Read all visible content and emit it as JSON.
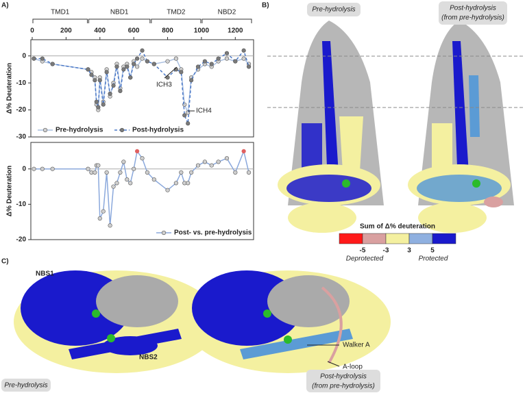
{
  "panels": {
    "a": "A)",
    "b": "B)",
    "c": "C)"
  },
  "chart_data": [
    {
      "type": "line",
      "ylabel": "Δ% Deuteration",
      "xlim": [
        0,
        1300
      ],
      "xticks": [
        0,
        200,
        400,
        600,
        800,
        1000,
        1200
      ],
      "ylim": [
        -30,
        6
      ],
      "yticks": [
        0,
        -10,
        -20,
        -30
      ],
      "domains": [
        {
          "name": "TMD1",
          "start": 0,
          "end": 330
        },
        {
          "name": "NBD1",
          "start": 330,
          "end": 700
        },
        {
          "name": "TMD2",
          "start": 700,
          "end": 1000
        },
        {
          "name": "NBD2",
          "start": 1000,
          "end": 1300
        }
      ],
      "annotations": [
        "ICH3",
        "ICH4"
      ],
      "legend": "bottom left",
      "series": [
        {
          "name": "Pre-hydrolysis",
          "color": "#a9bfe0",
          "marker_color": "#d0d0d0",
          "dashed": false,
          "x": [
            10,
            60,
            120,
            330,
            350,
            370,
            380,
            390,
            400,
            420,
            440,
            460,
            480,
            500,
            520,
            540,
            560,
            580,
            600,
            620,
            650,
            680,
            720,
            800,
            850,
            880,
            900,
            920,
            940,
            980,
            1020,
            1060,
            1100,
            1150,
            1200,
            1250,
            1280
          ],
          "values": [
            -1,
            -2,
            -3,
            -5,
            -6,
            -8,
            -18,
            -20,
            -8,
            -17,
            -5,
            -15,
            -10,
            -3,
            -12,
            -4,
            -3,
            -8,
            -2,
            -4,
            -1,
            -2,
            -3,
            -2,
            -1,
            -5,
            -18,
            -21,
            -8,
            -5,
            -3,
            -4,
            -2,
            -1,
            -2,
            -1,
            -3
          ]
        },
        {
          "name": "Post-hydrolysis",
          "color": "#4a78c8",
          "marker_color": "#7a7a7a",
          "dashed": true,
          "x": [
            10,
            60,
            120,
            330,
            350,
            370,
            380,
            390,
            400,
            420,
            440,
            460,
            480,
            500,
            520,
            540,
            560,
            580,
            600,
            620,
            650,
            680,
            720,
            800,
            850,
            880,
            900,
            920,
            940,
            980,
            1020,
            1060,
            1100,
            1150,
            1200,
            1250,
            1280
          ],
          "values": [
            -1,
            -1,
            -3,
            -5,
            -7,
            -9,
            -17,
            -19,
            -9,
            -18,
            -6,
            -14,
            -11,
            -4,
            -13,
            -5,
            -4,
            -8,
            -3,
            -1,
            2,
            -2,
            -3,
            -8,
            -5,
            -6,
            -22,
            -25,
            -9,
            -4,
            -2,
            -3,
            -1,
            1,
            -2,
            2,
            -4
          ]
        }
      ]
    },
    {
      "type": "line",
      "ylabel": "Δ% Deuteration",
      "xlim": [
        0,
        1300
      ],
      "ylim": [
        -20,
        7.5
      ],
      "yticks": [
        0,
        -10,
        -20
      ],
      "legend": "bottom right",
      "positive_color": "#e06060",
      "series": [
        {
          "name": "Post- vs. pre-hydrolysis",
          "color": "#8aa8dc",
          "marker_color": "#cfcfcf",
          "dashed": false,
          "x": [
            10,
            60,
            120,
            330,
            350,
            370,
            380,
            390,
            400,
            420,
            440,
            460,
            480,
            500,
            520,
            540,
            560,
            580,
            600,
            620,
            650,
            680,
            720,
            800,
            850,
            880,
            900,
            920,
            940,
            980,
            1020,
            1060,
            1100,
            1150,
            1200,
            1250,
            1280
          ],
          "values": [
            0,
            0,
            0,
            0,
            -1,
            -1,
            1,
            1,
            -14,
            -12,
            -1,
            -16,
            -5,
            -4,
            -1,
            2,
            -3,
            -4,
            0,
            5,
            3,
            -1,
            -3,
            -6,
            -4,
            -1,
            -4,
            -4,
            -1,
            1,
            2,
            1,
            2,
            3,
            -1,
            5,
            -1
          ]
        }
      ]
    }
  ],
  "structure_b": {
    "left_label": "Pre-hydrolysis",
    "right_label_1": "Post-hydrolysis",
    "right_label_2": "(from pre-hydrolysis)"
  },
  "colorbar": {
    "title": "Sum of Δ% deuteration",
    "colors": [
      "#ff1a1a",
      "#d9a0a0",
      "#f4f0a0",
      "#8fb0e0",
      "#1a1acc"
    ],
    "ticks": [
      -5,
      -3,
      3,
      5
    ],
    "low_label": "Deprotected",
    "high_label": "Protected"
  },
  "structure_c": {
    "nbs1": "NBS1",
    "nbs2": "NBS2",
    "walker": "Walker A",
    "aloop": "A-loop",
    "left_label": "Pre-hydrolysis",
    "right_label_1": "Post-hydrolysis",
    "right_label_2": "(from pre-hydrolysis)"
  }
}
